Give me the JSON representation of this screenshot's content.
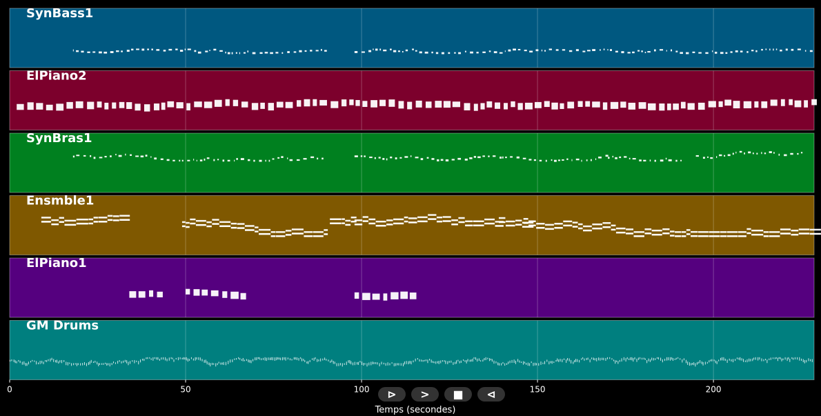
{
  "chart_data": {
    "type": "piano-roll",
    "xlabel": "Temps (secondes)",
    "xlim": [
      0,
      228.6
    ],
    "xticks": [
      0,
      50,
      100,
      150,
      200
    ],
    "grid": true,
    "tracks": [
      {
        "name": "SynBass1",
        "color": "#005880",
        "segments": [
          [
            18,
            90
          ],
          [
            98,
            228
          ]
        ],
        "style": "small",
        "pitch_band": [
          0.68,
          0.74
        ]
      },
      {
        "name": "ElPiano2",
        "color": "#7c002c",
        "segments": [
          [
            2,
            228
          ]
        ],
        "style": "block",
        "pitch_band": [
          0.48,
          0.62
        ]
      },
      {
        "name": "SynBras1",
        "color": "#00801f",
        "segments": [
          [
            18,
            90
          ],
          [
            98,
            140
          ],
          [
            140,
            170
          ],
          [
            170,
            192
          ],
          [
            195,
            225
          ]
        ],
        "style": "small",
        "pitch_band": [
          0.3,
          0.45
        ]
      },
      {
        "name": "Ensmble1",
        "color": "#7f5800",
        "segments": [
          [
            9,
            34
          ],
          [
            49,
            90
          ],
          [
            91,
            98
          ],
          [
            98,
            138
          ],
          [
            139,
            146
          ],
          [
            146,
            228
          ]
        ],
        "style": "line",
        "pitch_band": [
          0.2,
          0.6
        ]
      },
      {
        "name": "ElPiano1",
        "color": "#55007f",
        "segments": [
          [
            34,
            42
          ],
          [
            50,
            66
          ],
          [
            98,
            114
          ]
        ],
        "style": "block",
        "pitch_band": [
          0.5,
          0.6
        ]
      },
      {
        "name": "GM Drums",
        "color": "#007f7f",
        "segments": [
          [
            0,
            228
          ]
        ],
        "style": "drum",
        "pitch_band": [
          0.62,
          0.72
        ]
      }
    ]
  },
  "controls": {
    "play": "⊳",
    "forward": ">",
    "stop": "■",
    "back": "⊲"
  }
}
